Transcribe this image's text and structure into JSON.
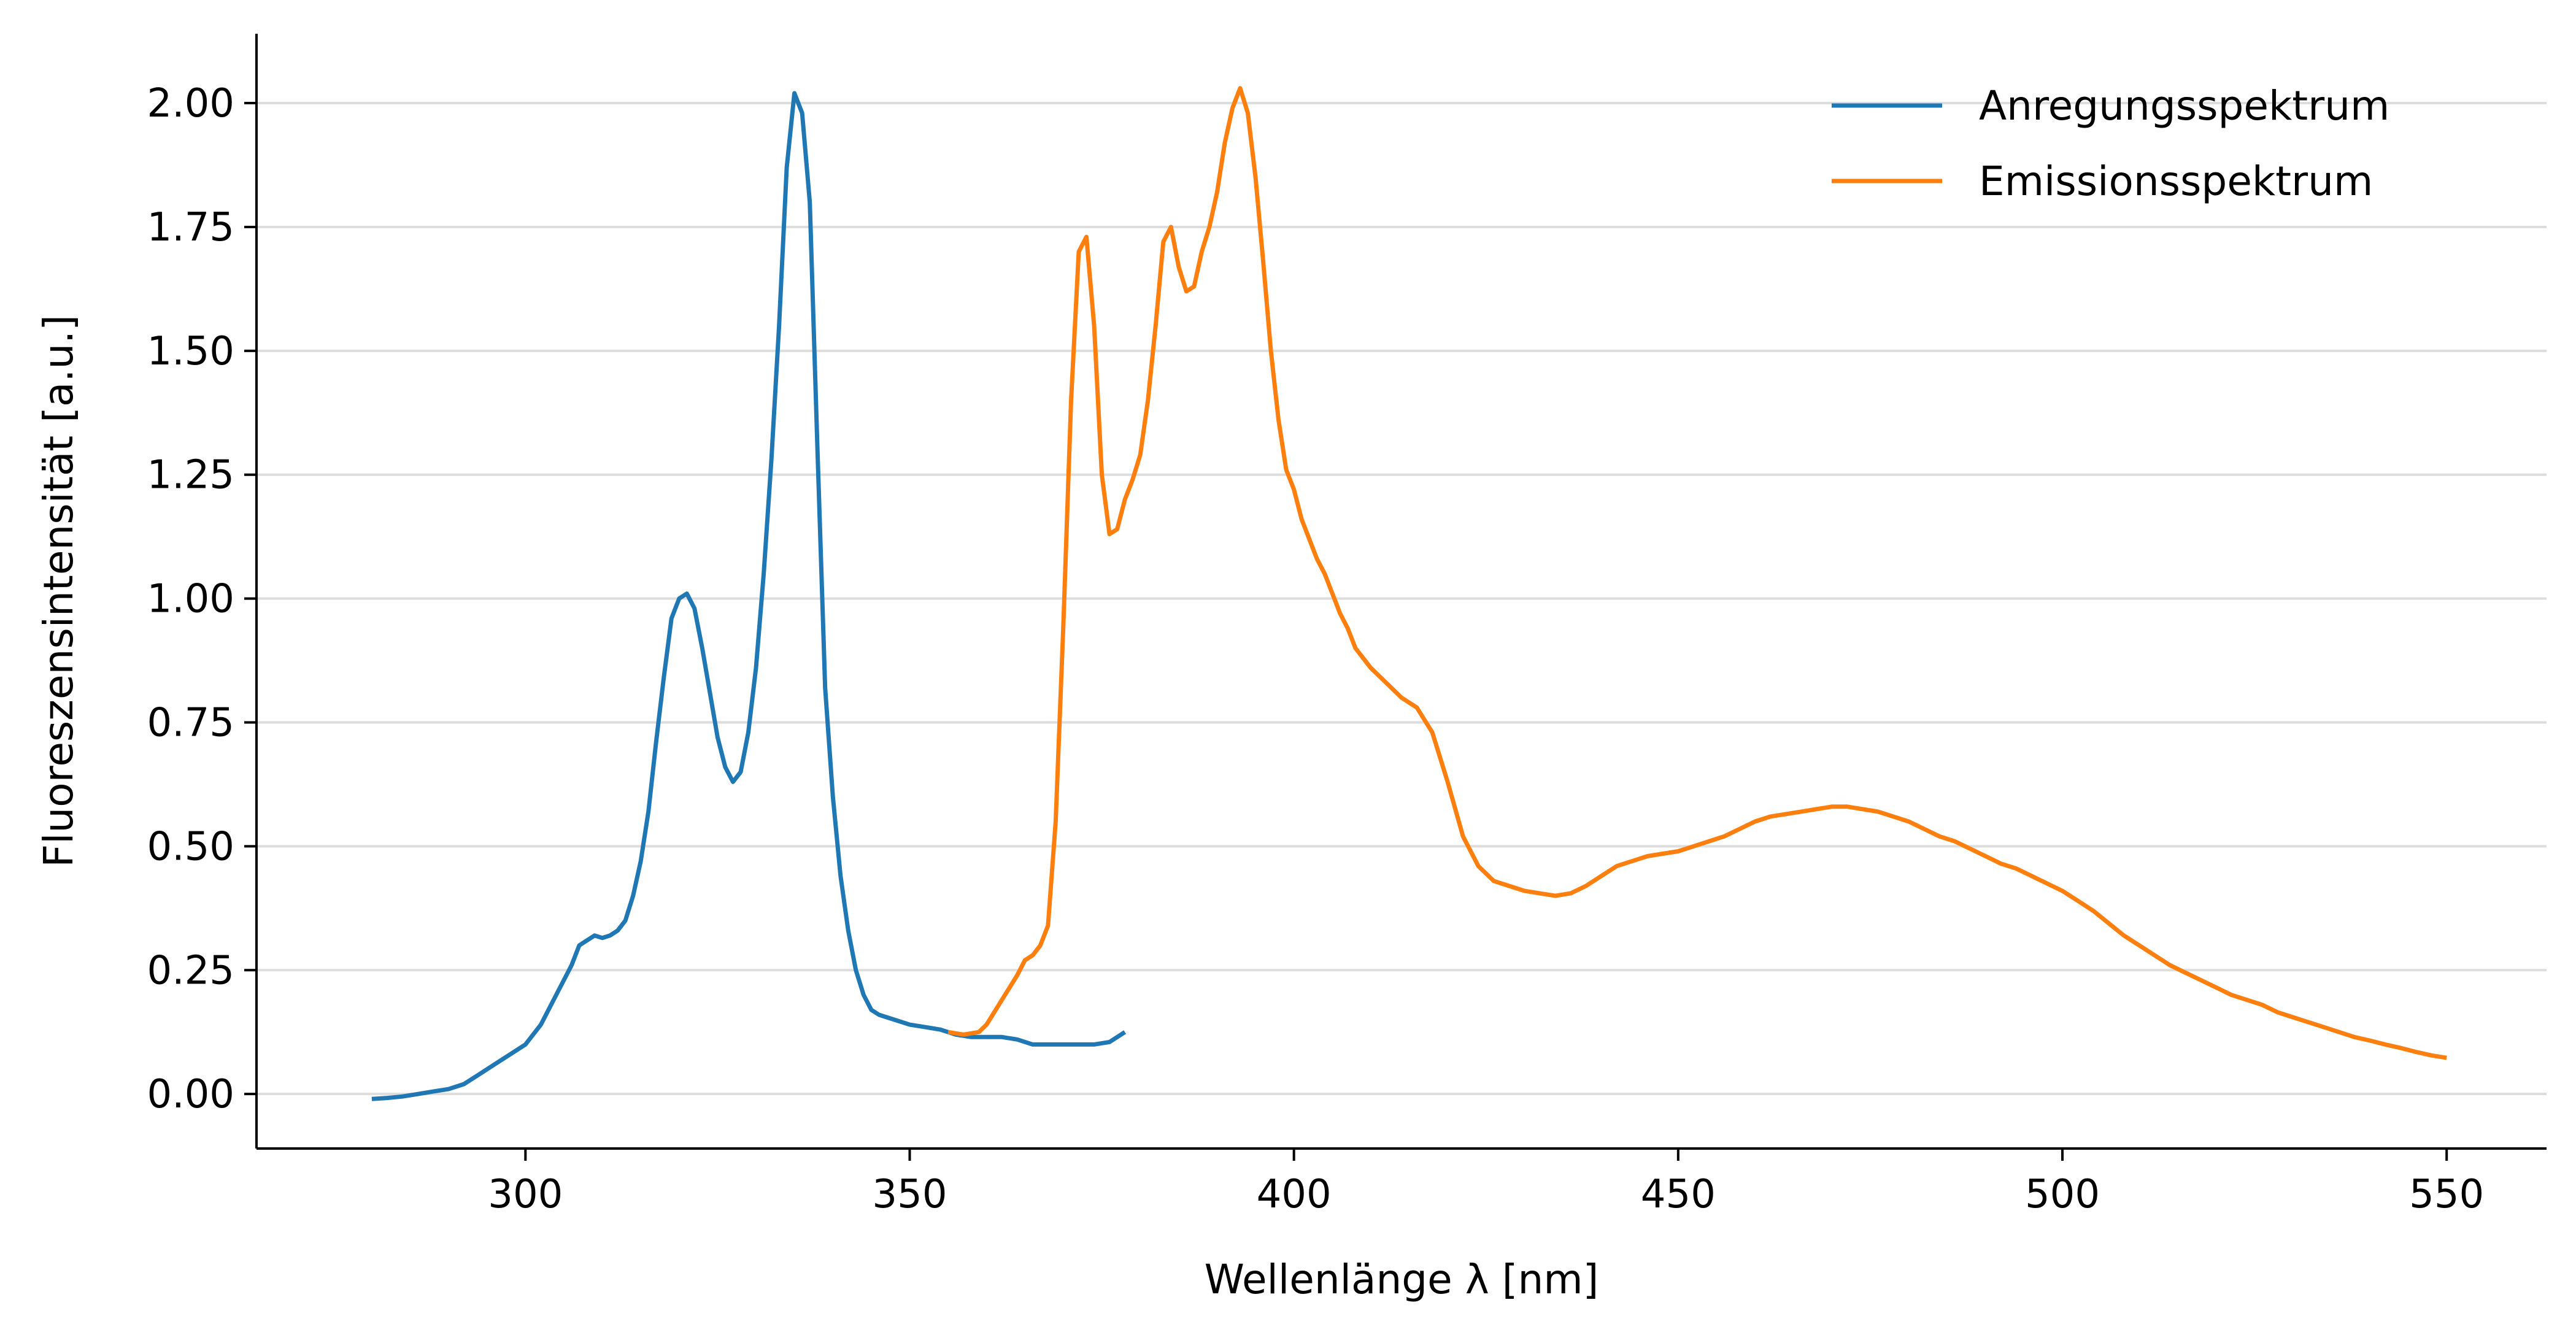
{
  "chart_data": {
    "type": "line",
    "xlabel": "Wellenlänge λ [nm]",
    "ylabel": "Fluoreszensintensität [a.u.]",
    "xlim": [
      265,
      563
    ],
    "ylim": [
      -0.11,
      2.14
    ],
    "xticks": [
      300,
      350,
      400,
      450,
      500,
      550
    ],
    "yticks": [
      0.0,
      0.25,
      0.5,
      0.75,
      1.0,
      1.25,
      1.5,
      1.75,
      2.0
    ],
    "xtick_labels": [
      "300",
      "350",
      "400",
      "450",
      "500",
      "550"
    ],
    "ytick_labels": [
      "0.00",
      "0.25",
      "0.50",
      "0.75",
      "1.00",
      "1.25",
      "1.50",
      "1.75",
      "2.00"
    ],
    "grid": "horizontal",
    "legend_position": "top-right",
    "series": [
      {
        "name": "Anregungsspektrum",
        "color": "#1f77b4",
        "points": [
          [
            280,
            -0.01
          ],
          [
            282,
            -0.008
          ],
          [
            284,
            -0.005
          ],
          [
            286,
            0.0
          ],
          [
            288,
            0.005
          ],
          [
            290,
            0.01
          ],
          [
            292,
            0.02
          ],
          [
            294,
            0.04
          ],
          [
            296,
            0.06
          ],
          [
            298,
            0.08
          ],
          [
            300,
            0.1
          ],
          [
            302,
            0.14
          ],
          [
            304,
            0.2
          ],
          [
            306,
            0.26
          ],
          [
            307,
            0.3
          ],
          [
            308,
            0.31
          ],
          [
            309,
            0.32
          ],
          [
            310,
            0.315
          ],
          [
            311,
            0.32
          ],
          [
            312,
            0.33
          ],
          [
            313,
            0.35
          ],
          [
            314,
            0.4
          ],
          [
            315,
            0.47
          ],
          [
            316,
            0.57
          ],
          [
            317,
            0.71
          ],
          [
            318,
            0.84
          ],
          [
            319,
            0.96
          ],
          [
            320,
            1.0
          ],
          [
            321,
            1.01
          ],
          [
            322,
            0.98
          ],
          [
            323,
            0.9
          ],
          [
            324,
            0.81
          ],
          [
            325,
            0.72
          ],
          [
            326,
            0.66
          ],
          [
            327,
            0.63
          ],
          [
            328,
            0.65
          ],
          [
            329,
            0.73
          ],
          [
            330,
            0.86
          ],
          [
            331,
            1.05
          ],
          [
            332,
            1.28
          ],
          [
            333,
            1.55
          ],
          [
            334,
            1.87
          ],
          [
            335,
            2.02
          ],
          [
            336,
            1.98
          ],
          [
            337,
            1.8
          ],
          [
            338,
            1.3
          ],
          [
            339,
            0.82
          ],
          [
            340,
            0.6
          ],
          [
            341,
            0.44
          ],
          [
            342,
            0.33
          ],
          [
            343,
            0.25
          ],
          [
            344,
            0.2
          ],
          [
            345,
            0.17
          ],
          [
            346,
            0.16
          ],
          [
            348,
            0.15
          ],
          [
            350,
            0.14
          ],
          [
            352,
            0.135
          ],
          [
            354,
            0.13
          ],
          [
            356,
            0.12
          ],
          [
            358,
            0.115
          ],
          [
            360,
            0.115
          ],
          [
            362,
            0.115
          ],
          [
            364,
            0.11
          ],
          [
            366,
            0.1
          ],
          [
            368,
            0.1
          ],
          [
            370,
            0.1
          ],
          [
            372,
            0.1
          ],
          [
            374,
            0.1
          ],
          [
            376,
            0.105
          ],
          [
            378,
            0.125
          ]
        ]
      },
      {
        "name": "Emissionsspektrum",
        "color": "#ff7f0e",
        "points": [
          [
            355,
            0.125
          ],
          [
            357,
            0.12
          ],
          [
            359,
            0.125
          ],
          [
            360,
            0.14
          ],
          [
            362,
            0.19
          ],
          [
            364,
            0.24
          ],
          [
            365,
            0.27
          ],
          [
            366,
            0.28
          ],
          [
            367,
            0.3
          ],
          [
            368,
            0.34
          ],
          [
            369,
            0.55
          ],
          [
            370,
            0.95
          ],
          [
            371,
            1.4
          ],
          [
            372,
            1.7
          ],
          [
            373,
            1.73
          ],
          [
            374,
            1.55
          ],
          [
            375,
            1.25
          ],
          [
            376,
            1.13
          ],
          [
            377,
            1.14
          ],
          [
            378,
            1.2
          ],
          [
            379,
            1.24
          ],
          [
            380,
            1.29
          ],
          [
            381,
            1.4
          ],
          [
            382,
            1.55
          ],
          [
            383,
            1.72
          ],
          [
            384,
            1.75
          ],
          [
            385,
            1.67
          ],
          [
            386,
            1.62
          ],
          [
            387,
            1.63
          ],
          [
            388,
            1.7
          ],
          [
            389,
            1.75
          ],
          [
            390,
            1.82
          ],
          [
            391,
            1.92
          ],
          [
            392,
            1.99
          ],
          [
            393,
            2.03
          ],
          [
            394,
            1.98
          ],
          [
            395,
            1.85
          ],
          [
            396,
            1.68
          ],
          [
            397,
            1.5
          ],
          [
            398,
            1.36
          ],
          [
            399,
            1.26
          ],
          [
            400,
            1.22
          ],
          [
            401,
            1.16
          ],
          [
            402,
            1.12
          ],
          [
            403,
            1.08
          ],
          [
            404,
            1.05
          ],
          [
            405,
            1.01
          ],
          [
            406,
            0.97
          ],
          [
            407,
            0.94
          ],
          [
            408,
            0.9
          ],
          [
            410,
            0.86
          ],
          [
            412,
            0.83
          ],
          [
            414,
            0.8
          ],
          [
            416,
            0.78
          ],
          [
            418,
            0.73
          ],
          [
            420,
            0.63
          ],
          [
            422,
            0.52
          ],
          [
            424,
            0.46
          ],
          [
            426,
            0.43
          ],
          [
            428,
            0.42
          ],
          [
            430,
            0.41
          ],
          [
            432,
            0.405
          ],
          [
            434,
            0.4
          ],
          [
            436,
            0.405
          ],
          [
            438,
            0.42
          ],
          [
            440,
            0.44
          ],
          [
            442,
            0.46
          ],
          [
            444,
            0.47
          ],
          [
            446,
            0.48
          ],
          [
            448,
            0.485
          ],
          [
            450,
            0.49
          ],
          [
            452,
            0.5
          ],
          [
            454,
            0.51
          ],
          [
            456,
            0.52
          ],
          [
            458,
            0.535
          ],
          [
            460,
            0.55
          ],
          [
            462,
            0.56
          ],
          [
            464,
            0.565
          ],
          [
            466,
            0.57
          ],
          [
            468,
            0.575
          ],
          [
            470,
            0.58
          ],
          [
            472,
            0.58
          ],
          [
            474,
            0.575
          ],
          [
            476,
            0.57
          ],
          [
            478,
            0.56
          ],
          [
            480,
            0.55
          ],
          [
            482,
            0.535
          ],
          [
            484,
            0.52
          ],
          [
            486,
            0.51
          ],
          [
            488,
            0.495
          ],
          [
            490,
            0.48
          ],
          [
            492,
            0.465
          ],
          [
            494,
            0.455
          ],
          [
            496,
            0.44
          ],
          [
            498,
            0.425
          ],
          [
            500,
            0.41
          ],
          [
            502,
            0.39
          ],
          [
            504,
            0.37
          ],
          [
            506,
            0.345
          ],
          [
            508,
            0.32
          ],
          [
            510,
            0.3
          ],
          [
            512,
            0.28
          ],
          [
            514,
            0.26
          ],
          [
            516,
            0.245
          ],
          [
            518,
            0.23
          ],
          [
            520,
            0.215
          ],
          [
            522,
            0.2
          ],
          [
            524,
            0.19
          ],
          [
            526,
            0.18
          ],
          [
            528,
            0.165
          ],
          [
            530,
            0.155
          ],
          [
            532,
            0.145
          ],
          [
            534,
            0.135
          ],
          [
            536,
            0.125
          ],
          [
            538,
            0.115
          ],
          [
            540,
            0.108
          ],
          [
            542,
            0.1
          ],
          [
            544,
            0.093
          ],
          [
            546,
            0.085
          ],
          [
            548,
            0.078
          ],
          [
            550,
            0.073
          ]
        ]
      }
    ]
  }
}
